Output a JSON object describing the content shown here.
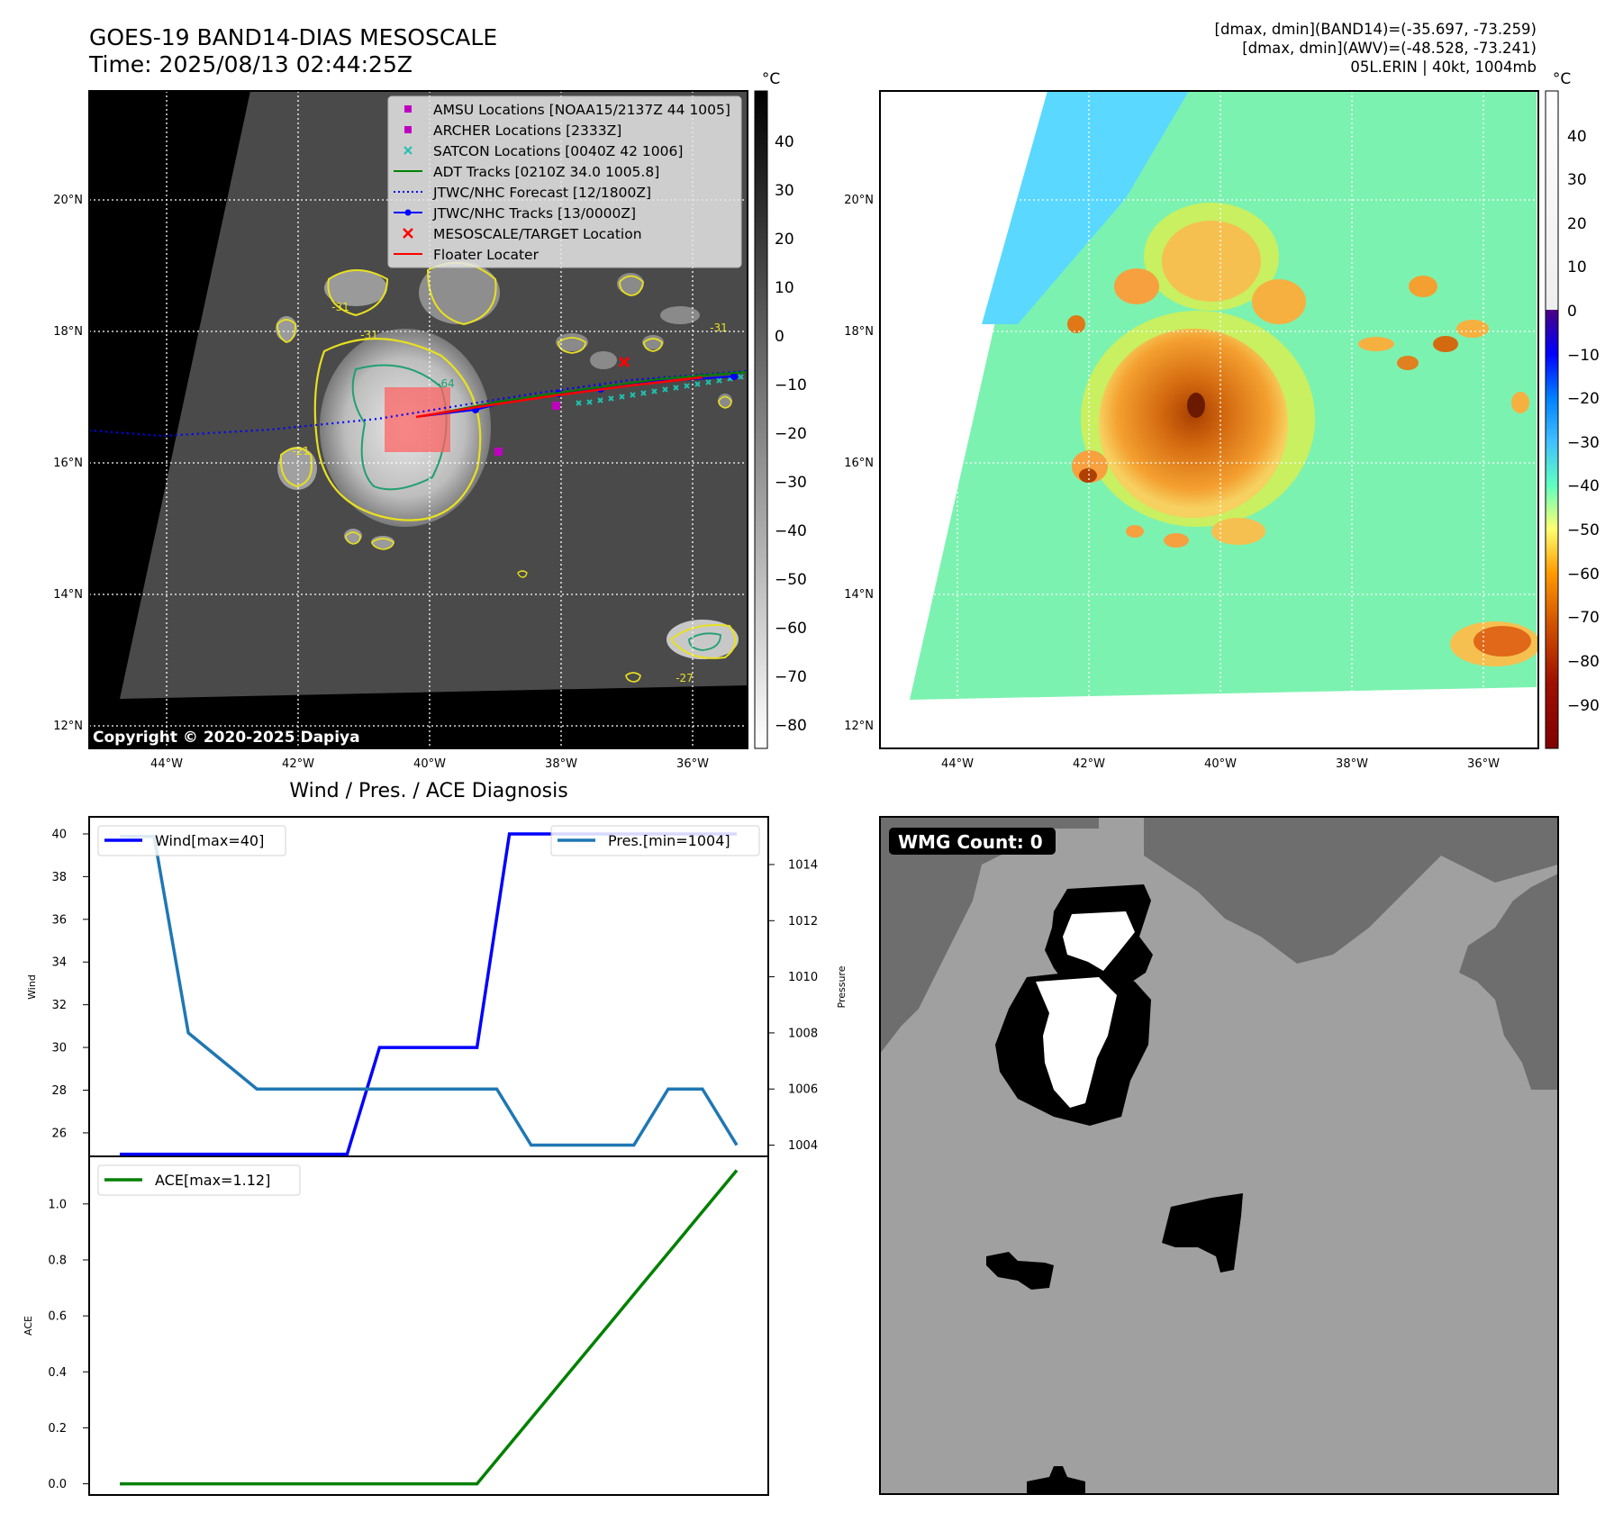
{
  "header": {
    "title_line1": "GOES-19 BAND14-DIAS MESOSCALE",
    "title_line2": "Time: 2025/08/13 02:44:25Z",
    "info_line1": "[dmax, dmin](BAND14)=(-35.697, -73.259)",
    "info_line2": "[dmax, dmin](AWV)=(-48.528, -73.241)",
    "info_line3": "05L.ERIN | 40kt, 1004mb"
  },
  "map_panel": {
    "copyright": "Copyright © 2020-2025 Dapiya",
    "unit_label": "°C",
    "lat_ticks": [
      "20°N",
      "18°N",
      "16°N",
      "14°N",
      "12°N"
    ],
    "lon_ticks": [
      "44°W",
      "42°W",
      "40°W",
      "38°W",
      "36°W"
    ],
    "contour_labels": [
      "-31",
      "-31",
      "-64",
      "-21",
      "-27",
      "-31"
    ],
    "colorbar_ticks": [
      "40",
      "30",
      "20",
      "10",
      "0",
      "−10",
      "−20",
      "−30",
      "−40",
      "−50",
      "−60",
      "−70",
      "−80"
    ],
    "legend": [
      {
        "label": "AMSU Locations [NOAA15/2137Z 44 1005]",
        "marker": "square",
        "color": "#c000c0"
      },
      {
        "label": "ARCHER Locations [2333Z]",
        "marker": "square",
        "color": "#c000c0"
      },
      {
        "label": "SATCON Locations [0040Z 42 1006]",
        "marker": "x",
        "color": "#20c0b0"
      },
      {
        "label": "ADT Tracks [0210Z 34.0 1005.8]",
        "marker": "line",
        "color": "#008000"
      },
      {
        "label": "JTWC/NHC Forecast [12/1800Z]",
        "marker": "dotted",
        "color": "#0000ff"
      },
      {
        "label": "JTWC/NHC Tracks [13/0000Z]",
        "marker": "line-dot",
        "color": "#0000ff"
      },
      {
        "label": "MESOSCALE/TARGET Location",
        "marker": "x",
        "color": "#ff0000"
      },
      {
        "label": "Floater Locater",
        "marker": "line",
        "color": "#ff0000"
      }
    ]
  },
  "awv_panel": {
    "unit_label": "°C",
    "lat_ticks": [
      "20°N",
      "18°N",
      "16°N",
      "14°N",
      "12°N"
    ],
    "lon_ticks": [
      "44°W",
      "42°W",
      "40°W",
      "38°W",
      "36°W"
    ],
    "colorbar_ticks": [
      "40",
      "30",
      "20",
      "10",
      "0",
      "−10",
      "−20",
      "−30",
      "−40",
      "−50",
      "−60",
      "−70",
      "−80",
      "−90"
    ]
  },
  "diag_panel": {
    "title": "Wind / Pres. / ACE Diagnosis",
    "wind_ylabel": "Wind",
    "pres_ylabel": "Pressure",
    "ace_ylabel": "ACE",
    "legend_wind": "Wind[max=40]",
    "legend_pres": "Pres.[min=1004]",
    "legend_ace": "ACE[max=1.12]"
  },
  "wmg_panel": {
    "label": "WMG Count: 0"
  },
  "chart_data": [
    {
      "type": "line",
      "title": "Wind / Pres. / ACE Diagnosis",
      "ylabel": "Wind",
      "ylim": [
        24.9,
        40.8
      ],
      "yticks": [
        26,
        28,
        30,
        32,
        34,
        36,
        38,
        40
      ],
      "series": [
        {
          "name": "Wind[max=40]",
          "color": "#0000ff",
          "values": [
            25,
            25,
            25,
            25,
            25,
            25,
            25,
            25,
            30,
            30,
            30,
            30,
            40,
            40,
            40,
            40,
            40,
            40,
            40,
            40
          ]
        }
      ]
    },
    {
      "type": "line",
      "ylabel": "Pressure",
      "ylim": [
        1003.6,
        1015.7
      ],
      "yticks": [
        1004,
        1006,
        1008,
        1010,
        1012,
        1014
      ],
      "series": [
        {
          "name": "Pres.[min=1004]",
          "color": "#1f77b4",
          "values": [
            1015,
            1015,
            1008,
            1007,
            1006,
            1006,
            1006,
            1006,
            1006,
            1006,
            1006,
            1006,
            1004,
            1004,
            1004,
            1004,
            1006,
            1006,
            1004
          ]
        }
      ]
    },
    {
      "type": "line",
      "ylabel": "ACE",
      "ylim": [
        -0.04,
        1.17
      ],
      "yticks": [
        0.0,
        0.2,
        0.4,
        0.6,
        0.8,
        1.0
      ],
      "series": [
        {
          "name": "ACE[max=1.12]",
          "color": "#008000",
          "values": [
            0,
            0,
            0,
            0,
            0,
            0,
            0,
            0,
            0,
            0,
            0,
            0,
            0.14,
            0.28,
            0.42,
            0.56,
            0.7,
            0.84,
            0.98,
            1.12
          ]
        }
      ]
    }
  ]
}
